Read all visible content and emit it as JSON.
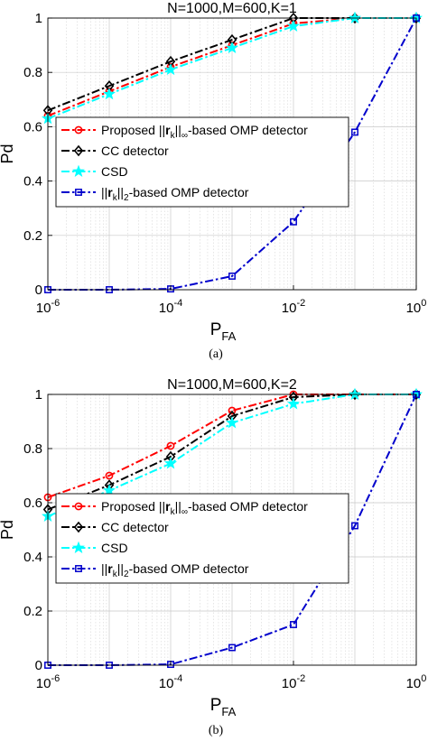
{
  "chart_data": [
    {
      "type": "line",
      "title": "N=1000,M=600,K=1",
      "xlabel": "P_FA",
      "ylabel": "Pd",
      "caption": "(a)",
      "xscale": "log",
      "xlim": [
        1e-06,
        1
      ],
      "ylim": [
        0,
        1
      ],
      "x_ticks": [
        {
          "mant": "10",
          "exp": "-6"
        },
        {
          "mant": "10",
          "exp": "-4"
        },
        {
          "mant": "10",
          "exp": "-2"
        },
        {
          "mant": "10",
          "exp": "0"
        }
      ],
      "y_ticks": [
        "0",
        "0.2",
        "0.4",
        "0.6",
        "0.8",
        "1"
      ],
      "grid": true,
      "legend_position": "center-left",
      "x": [
        1e-06,
        1e-05,
        0.0001,
        0.001,
        0.01,
        0.1,
        1
      ],
      "series": [
        {
          "name": "Proposed ||r_k||_∞-based OMP detector",
          "color": "#ff0000",
          "marker": "circle",
          "values": [
            0.64,
            0.73,
            0.82,
            0.9,
            0.98,
            1.0,
            1.0
          ]
        },
        {
          "name": "CC detector",
          "color": "#000000",
          "marker": "diamond",
          "values": [
            0.66,
            0.75,
            0.84,
            0.92,
            1.0,
            1.0,
            1.0
          ]
        },
        {
          "name": "CSD",
          "color": "#00ffff",
          "marker": "star",
          "values": [
            0.63,
            0.72,
            0.81,
            0.89,
            0.97,
            1.0,
            1.0
          ]
        },
        {
          "name": "||r_k||_2-based OMP detector",
          "color": "#0000cc",
          "marker": "square",
          "values": [
            0.0,
            0.0,
            0.003,
            0.05,
            0.25,
            0.58,
            1.0
          ]
        }
      ]
    },
    {
      "type": "line",
      "title": "N=1000,M=600,K=2",
      "xlabel": "P_FA",
      "ylabel": "Pd",
      "caption": "(b)",
      "xscale": "log",
      "xlim": [
        1e-06,
        1
      ],
      "ylim": [
        0,
        1
      ],
      "x_ticks": [
        {
          "mant": "10",
          "exp": "-6"
        },
        {
          "mant": "10",
          "exp": "-4"
        },
        {
          "mant": "10",
          "exp": "-2"
        },
        {
          "mant": "10",
          "exp": "0"
        }
      ],
      "y_ticks": [
        "0",
        "0.2",
        "0.4",
        "0.6",
        "0.8",
        "1"
      ],
      "grid": true,
      "legend_position": "center-left",
      "x": [
        1e-06,
        1e-05,
        0.0001,
        0.001,
        0.01,
        0.1,
        1
      ],
      "series": [
        {
          "name": "Proposed ||r_k||_∞-based OMP detector",
          "color": "#ff0000",
          "marker": "circle",
          "values": [
            0.62,
            0.7,
            0.81,
            0.94,
            1.0,
            1.0,
            1.0
          ]
        },
        {
          "name": "CC detector",
          "color": "#000000",
          "marker": "diamond",
          "values": [
            0.575,
            0.665,
            0.77,
            0.92,
            0.99,
            1.0,
            1.0
          ]
        },
        {
          "name": "CSD",
          "color": "#00ffff",
          "marker": "star",
          "values": [
            0.55,
            0.645,
            0.745,
            0.895,
            0.965,
            1.0,
            1.0
          ]
        },
        {
          "name": "||r_k||_2-based OMP detector",
          "color": "#0000cc",
          "marker": "square",
          "values": [
            0.0,
            0.0,
            0.003,
            0.065,
            0.15,
            0.515,
            1.0
          ]
        }
      ]
    }
  ]
}
